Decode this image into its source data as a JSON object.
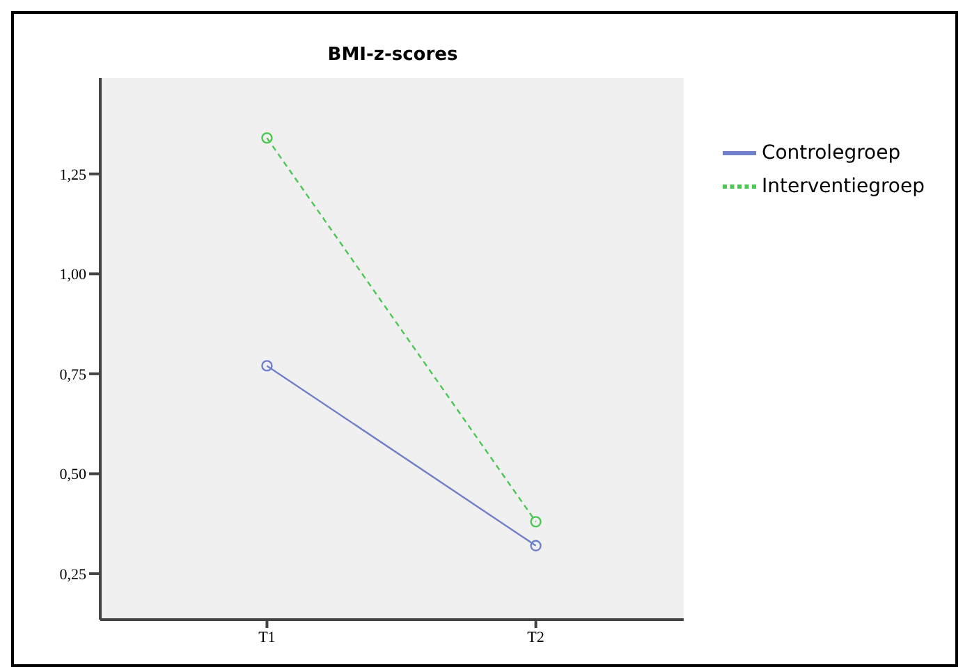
{
  "chart_data": {
    "type": "line",
    "title": "BMI-z-scores",
    "categories": [
      "T1",
      "T2"
    ],
    "series": [
      {
        "name": "Controlegroep",
        "color": "#6f7fc9",
        "values": [
          0.77,
          0.32
        ],
        "line_style": "solid"
      },
      {
        "name": "Interventiegroep",
        "color": "#4cc752",
        "values": [
          1.34,
          0.38
        ],
        "line_style": "dashed"
      }
    ],
    "ylim": [
      0.135,
      1.49
    ],
    "yticks": [
      {
        "value": 0.25,
        "label": "0,25"
      },
      {
        "value": 0.5,
        "label": "0,50"
      },
      {
        "value": 0.75,
        "label": "0,75"
      },
      {
        "value": 1.0,
        "label": "1,00"
      },
      {
        "value": 1.25,
        "label": "1,25"
      }
    ],
    "marker": "circle",
    "grid": false,
    "legend": "right"
  }
}
